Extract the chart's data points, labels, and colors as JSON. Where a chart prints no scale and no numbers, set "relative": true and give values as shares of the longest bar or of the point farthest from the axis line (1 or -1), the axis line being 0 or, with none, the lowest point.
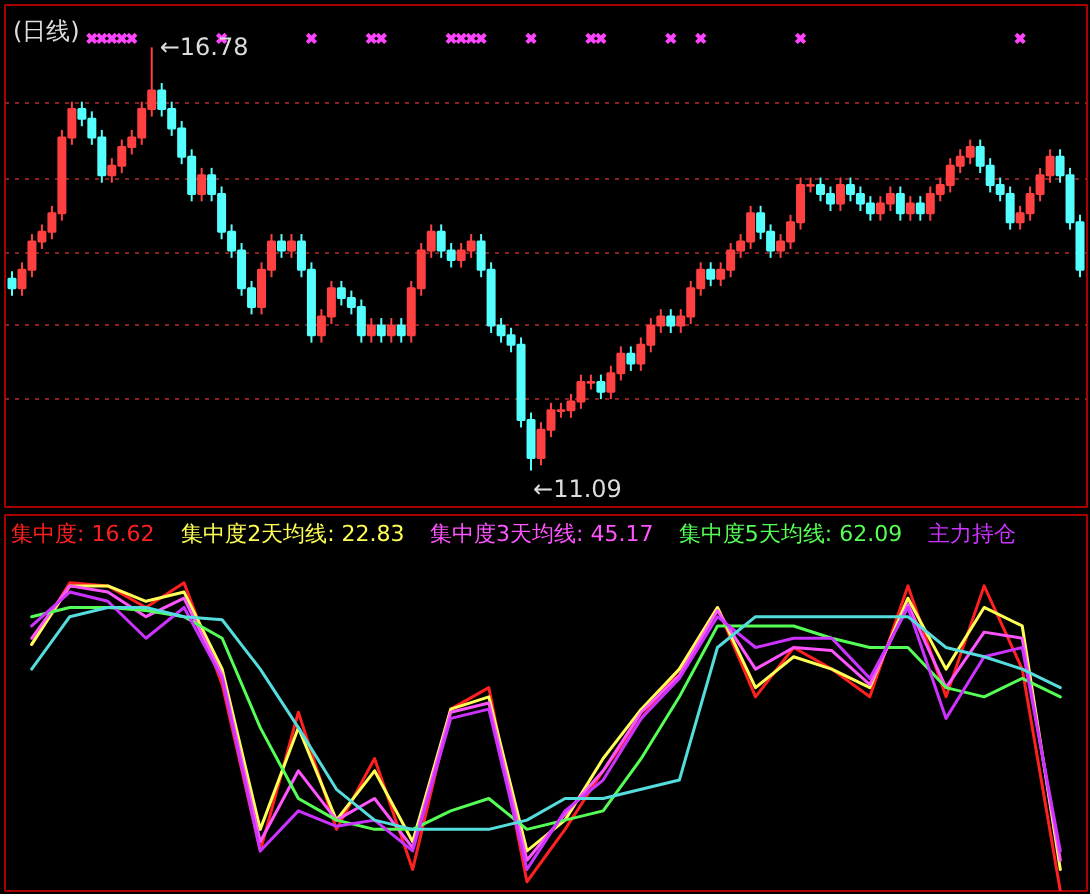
{
  "chart_data": [
    {
      "type": "candlestick",
      "title": "(日线)",
      "categories": [
        null,
        null,
        null,
        null,
        null,
        null,
        null,
        null,
        null,
        null,
        null,
        null,
        null,
        null,
        null,
        null,
        null,
        null,
        null,
        null,
        null,
        null,
        null,
        null,
        null,
        null,
        null,
        null,
        null,
        null,
        null,
        null,
        null,
        null,
        null,
        null,
        null,
        null,
        null,
        null,
        null,
        null,
        null,
        null,
        null,
        null,
        null,
        null,
        null,
        null,
        null,
        null,
        null,
        null,
        null,
        null,
        null,
        null,
        null,
        null,
        null,
        null,
        null,
        null,
        null,
        null,
        null,
        null,
        null,
        null,
        null,
        null,
        null,
        null,
        null,
        null,
        null,
        null,
        null,
        null,
        null,
        null,
        null,
        null,
        null,
        null,
        null,
        null,
        null,
        null,
        null,
        null,
        null,
        null,
        null,
        null,
        null,
        null,
        null,
        null,
        null,
        null,
        null,
        null,
        null,
        null,
        null,
        null
      ],
      "ohlc": [
        [
          13.67,
          13.77,
          13.44,
          13.54
        ],
        [
          13.54,
          13.89,
          13.44,
          13.79
        ],
        [
          13.79,
          14.27,
          13.69,
          14.17
        ],
        [
          14.17,
          14.4,
          14.07,
          14.3
        ],
        [
          14.3,
          14.65,
          14.2,
          14.55
        ],
        [
          14.55,
          15.67,
          14.45,
          15.57
        ],
        [
          15.57,
          16.05,
          15.47,
          15.95
        ],
        [
          15.95,
          16.05,
          15.72,
          15.82
        ],
        [
          15.82,
          15.92,
          15.47,
          15.57
        ],
        [
          15.57,
          15.67,
          14.96,
          15.06
        ],
        [
          15.06,
          15.29,
          14.96,
          15.19
        ],
        [
          15.19,
          15.54,
          15.09,
          15.44
        ],
        [
          15.44,
          15.67,
          15.34,
          15.57
        ],
        [
          15.57,
          16.05,
          15.47,
          15.95
        ],
        [
          15.95,
          16.78,
          15.85,
          16.2
        ],
        [
          16.2,
          16.3,
          15.85,
          15.95
        ],
        [
          15.95,
          16.05,
          15.59,
          15.69
        ],
        [
          15.69,
          15.79,
          15.21,
          15.31
        ],
        [
          15.31,
          15.41,
          14.71,
          14.81
        ],
        [
          14.81,
          15.16,
          14.71,
          15.06
        ],
        [
          15.06,
          15.16,
          14.71,
          14.81
        ],
        [
          14.81,
          14.91,
          14.2,
          14.3
        ],
        [
          14.3,
          14.4,
          13.95,
          14.05
        ],
        [
          14.05,
          14.15,
          13.44,
          13.54
        ],
        [
          13.54,
          13.64,
          13.19,
          13.29
        ],
        [
          13.29,
          13.89,
          13.19,
          13.79
        ],
        [
          13.79,
          14.27,
          13.69,
          14.17
        ],
        [
          14.17,
          14.27,
          13.95,
          14.05
        ],
        [
          14.05,
          14.27,
          13.95,
          14.17
        ],
        [
          14.17,
          14.27,
          13.69,
          13.79
        ],
        [
          13.79,
          13.89,
          12.81,
          12.91
        ],
        [
          12.91,
          13.26,
          12.81,
          13.16
        ],
        [
          13.16,
          13.64,
          13.06,
          13.54
        ],
        [
          13.54,
          13.64,
          13.31,
          13.41
        ],
        [
          13.41,
          13.51,
          13.19,
          13.29
        ],
        [
          13.29,
          13.39,
          12.81,
          12.91
        ],
        [
          12.91,
          13.14,
          12.81,
          13.04
        ],
        [
          13.04,
          13.14,
          12.81,
          12.91
        ],
        [
          12.91,
          13.14,
          12.81,
          13.04
        ],
        [
          13.04,
          13.14,
          12.81,
          12.91
        ],
        [
          12.91,
          13.64,
          12.81,
          13.54
        ],
        [
          13.54,
          14.15,
          13.44,
          14.05
        ],
        [
          14.05,
          14.4,
          13.95,
          14.3
        ],
        [
          14.3,
          14.4,
          13.95,
          14.05
        ],
        [
          14.05,
          14.15,
          13.82,
          13.92
        ],
        [
          13.92,
          14.15,
          13.82,
          14.05
        ],
        [
          14.05,
          14.27,
          13.95,
          14.17
        ],
        [
          14.17,
          14.27,
          13.69,
          13.79
        ],
        [
          13.79,
          13.89,
          12.94,
          13.04
        ],
        [
          13.04,
          13.14,
          12.81,
          12.91
        ],
        [
          12.91,
          13.01,
          12.68,
          12.78
        ],
        [
          12.78,
          12.88,
          11.67,
          11.77
        ],
        [
          11.77,
          11.87,
          11.09,
          11.26
        ],
        [
          11.26,
          11.74,
          11.16,
          11.64
        ],
        [
          11.64,
          12.0,
          11.54,
          11.9
        ],
        [
          11.9,
          12.0,
          11.8,
          11.9
        ],
        [
          11.9,
          12.12,
          11.8,
          12.02
        ],
        [
          12.02,
          12.38,
          11.92,
          12.28
        ],
        [
          12.28,
          12.38,
          12.18,
          12.28
        ],
        [
          12.28,
          12.38,
          12.05,
          12.15
        ],
        [
          12.15,
          12.5,
          12.05,
          12.4
        ],
        [
          12.4,
          12.76,
          12.3,
          12.66
        ],
        [
          12.66,
          12.76,
          12.43,
          12.53
        ],
        [
          12.53,
          12.88,
          12.43,
          12.78
        ],
        [
          12.78,
          13.14,
          12.68,
          13.04
        ],
        [
          13.04,
          13.26,
          12.94,
          13.16
        ],
        [
          13.16,
          13.26,
          12.94,
          13.04
        ],
        [
          13.04,
          13.26,
          12.94,
          13.16
        ],
        [
          13.16,
          13.64,
          13.06,
          13.54
        ],
        [
          13.54,
          13.89,
          13.44,
          13.79
        ],
        [
          13.79,
          13.89,
          13.57,
          13.67
        ],
        [
          13.67,
          13.89,
          13.57,
          13.79
        ],
        [
          13.79,
          14.15,
          13.69,
          14.05
        ],
        [
          14.05,
          14.27,
          13.95,
          14.17
        ],
        [
          14.17,
          14.65,
          14.07,
          14.55
        ],
        [
          14.55,
          14.65,
          14.2,
          14.3
        ],
        [
          14.3,
          14.4,
          13.95,
          14.05
        ],
        [
          14.05,
          14.27,
          13.95,
          14.17
        ],
        [
          14.17,
          14.53,
          14.07,
          14.43
        ],
        [
          14.43,
          15.03,
          14.33,
          14.93
        ],
        [
          14.93,
          15.03,
          14.83,
          14.93
        ],
        [
          14.93,
          15.03,
          14.71,
          14.81
        ],
        [
          14.81,
          14.91,
          14.58,
          14.68
        ],
        [
          14.68,
          15.03,
          14.58,
          14.93
        ],
        [
          14.93,
          15.03,
          14.71,
          14.81
        ],
        [
          14.81,
          14.91,
          14.58,
          14.68
        ],
        [
          14.68,
          14.78,
          14.45,
          14.55
        ],
        [
          14.55,
          14.78,
          14.45,
          14.68
        ],
        [
          14.68,
          14.91,
          14.58,
          14.81
        ],
        [
          14.81,
          14.91,
          14.45,
          14.55
        ],
        [
          14.55,
          14.78,
          14.45,
          14.68
        ],
        [
          14.68,
          14.78,
          14.45,
          14.55
        ],
        [
          14.55,
          14.91,
          14.45,
          14.81
        ],
        [
          14.81,
          15.03,
          14.71,
          14.93
        ],
        [
          14.93,
          15.29,
          14.83,
          15.19
        ],
        [
          15.19,
          15.41,
          15.09,
          15.31
        ],
        [
          15.31,
          15.54,
          15.21,
          15.44
        ],
        [
          15.44,
          15.54,
          15.09,
          15.19
        ],
        [
          15.19,
          15.29,
          14.83,
          14.93
        ],
        [
          14.93,
          15.03,
          14.71,
          14.81
        ],
        [
          14.81,
          14.91,
          14.33,
          14.43
        ],
        [
          14.43,
          14.65,
          14.33,
          14.55
        ],
        [
          14.55,
          14.91,
          14.45,
          14.81
        ],
        [
          14.81,
          15.16,
          14.71,
          15.06
        ],
        [
          15.06,
          15.41,
          14.96,
          15.31
        ],
        [
          15.31,
          15.41,
          14.96,
          15.06
        ],
        [
          15.06,
          15.16,
          14.33,
          14.43
        ],
        [
          14.43,
          14.53,
          13.69,
          13.79
        ]
      ],
      "series": [
        {
          "type": "scatter",
          "marker": "cross",
          "color": "#ff44ff",
          "values": [
            null,
            null,
            null,
            null,
            null,
            null,
            null,
            null,
            16.9,
            16.9,
            16.9,
            16.9,
            16.9,
            null,
            null,
            null,
            null,
            null,
            null,
            null,
            null,
            16.9,
            null,
            null,
            null,
            null,
            null,
            null,
            null,
            null,
            16.9,
            null,
            null,
            null,
            null,
            null,
            16.9,
            16.9,
            null,
            null,
            null,
            null,
            null,
            null,
            16.9,
            16.9,
            16.9,
            16.9,
            null,
            null,
            null,
            null,
            16.9,
            null,
            null,
            null,
            null,
            null,
            16.9,
            16.9,
            null,
            null,
            null,
            null,
            null,
            null,
            16.9,
            null,
            null,
            16.9,
            null,
            null,
            null,
            null,
            null,
            null,
            null,
            null,
            null,
            16.9,
            null,
            null,
            null,
            null,
            null,
            null,
            null,
            null,
            null,
            null,
            null,
            null,
            null,
            null,
            null,
            null,
            null,
            null,
            null,
            null,
            null,
            16.9,
            null,
            null,
            null,
            null,
            null,
            null
          ]
        }
      ],
      "ylim": [
        10.6,
        17.35
      ],
      "yticks": [
        {
          "value": 12.05,
          "label": null
        },
        {
          "value": 13.04,
          "label": null
        },
        {
          "value": 14.02,
          "label": null
        },
        {
          "value": 15.01,
          "label": null
        },
        {
          "value": 16.02,
          "label": null
        }
      ],
      "grid": "y",
      "tick_labels": false,
      "annotations": [
        "←16.78",
        "←11.09"
      ]
    },
    {
      "type": "line",
      "relative": true,
      "tick_labels": false,
      "categories": [
        null,
        null,
        null,
        null,
        null,
        null,
        null,
        null,
        null,
        null,
        null,
        null,
        null,
        null,
        null,
        null,
        null,
        null,
        null,
        null,
        null,
        null,
        null,
        null,
        null,
        null,
        null,
        null
      ],
      "series": [
        {
          "name": "集中度: 16.62",
          "color": "#ff2020",
          "values": [
            0.8,
            1.0,
            0.99,
            0.92,
            1.0,
            0.67,
            0.13,
            0.58,
            0.2,
            0.43,
            0.07,
            0.59,
            0.66,
            0.03,
            0.2,
            0.39,
            0.56,
            0.72,
            0.92,
            0.63,
            0.79,
            0.72,
            0.63,
            0.99,
            0.63,
            0.99,
            0.72,
            0.0
          ]
        },
        {
          "name": "集中度2天均线: 22.83",
          "color": "#ffff55",
          "values": [
            0.8,
            0.99,
            0.99,
            0.94,
            0.97,
            0.72,
            0.2,
            0.53,
            0.23,
            0.39,
            0.16,
            0.59,
            0.63,
            0.13,
            0.23,
            0.43,
            0.59,
            0.72,
            0.92,
            0.66,
            0.76,
            0.72,
            0.66,
            0.95,
            0.72,
            0.92,
            0.86,
            0.07
          ]
        },
        {
          "name": "集中度3天均线: 45.17",
          "color": "#ff55ff",
          "values": [
            0.82,
            0.99,
            0.97,
            0.89,
            0.95,
            0.7,
            0.16,
            0.39,
            0.23,
            0.3,
            0.14,
            0.58,
            0.61,
            0.1,
            0.25,
            0.39,
            0.58,
            0.7,
            0.91,
            0.72,
            0.79,
            0.78,
            0.67,
            0.93,
            0.66,
            0.84,
            0.82,
            0.1
          ]
        },
        {
          "name": "集中度5天均线: 62.09",
          "color": "#55ff55",
          "values": [
            0.89,
            0.92,
            0.92,
            0.91,
            0.89,
            0.82,
            0.53,
            0.3,
            0.23,
            0.2,
            0.2,
            0.26,
            0.3,
            0.2,
            0.23,
            0.26,
            0.43,
            0.63,
            0.86,
            0.86,
            0.86,
            0.82,
            0.79,
            0.79,
            0.66,
            0.63,
            0.69,
            0.63
          ]
        },
        {
          "name": "主力持仓",
          "color": "#cc33ff",
          "values": [
            0.86,
            0.97,
            0.94,
            0.82,
            0.92,
            0.69,
            0.13,
            0.26,
            0.21,
            0.23,
            0.13,
            0.56,
            0.59,
            0.07,
            0.26,
            0.36,
            0.56,
            0.69,
            0.89,
            0.79,
            0.82,
            0.82,
            0.69,
            0.92,
            0.56,
            0.76,
            0.79,
            0.13
          ]
        },
        {
          "color": "#55dddd",
          "values": [
            0.72,
            0.89,
            0.92,
            0.92,
            0.89,
            0.88,
            0.72,
            0.53,
            0.33,
            0.23,
            0.2,
            0.2,
            0.2,
            0.23,
            0.3,
            0.3,
            0.33,
            0.36,
            0.79,
            0.89,
            0.89,
            0.89,
            0.89,
            0.89,
            0.79,
            0.76,
            0.72,
            0.66
          ]
        }
      ]
    }
  ]
}
